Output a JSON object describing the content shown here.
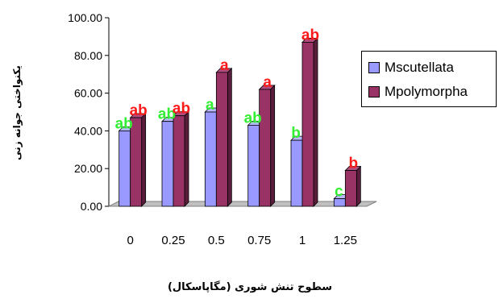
{
  "chart_data": {
    "type": "bar",
    "title": "",
    "xlabel": "سطوح تنش شوری (مگاپاسکال)",
    "ylabel": "یکنواختی جوانه زنی",
    "categories": [
      "0",
      "0.25",
      "0.5",
      "0.75",
      "1",
      "1.25"
    ],
    "yticks": [
      "0.00",
      "20.00",
      "40.00",
      "60.00",
      "80.00",
      "100.00"
    ],
    "ylim": [
      0,
      100
    ],
    "grid": false,
    "legend_position": "right",
    "series": [
      {
        "name": "Mscutellata",
        "color": "#9999ff",
        "values": [
          40,
          45,
          50,
          43,
          35,
          4
        ],
        "labels": [
          "ab",
          "ab",
          "a",
          "ab",
          "b",
          "c"
        ],
        "label_color": "#33ee33"
      },
      {
        "name": "Mpolymorpha",
        "color": "#993366",
        "values": [
          47,
          48,
          71,
          62,
          87,
          19
        ],
        "labels": [
          "ab",
          "ab",
          "a",
          "a",
          "ab",
          "b"
        ],
        "label_color": "#ff1a1a"
      }
    ]
  }
}
